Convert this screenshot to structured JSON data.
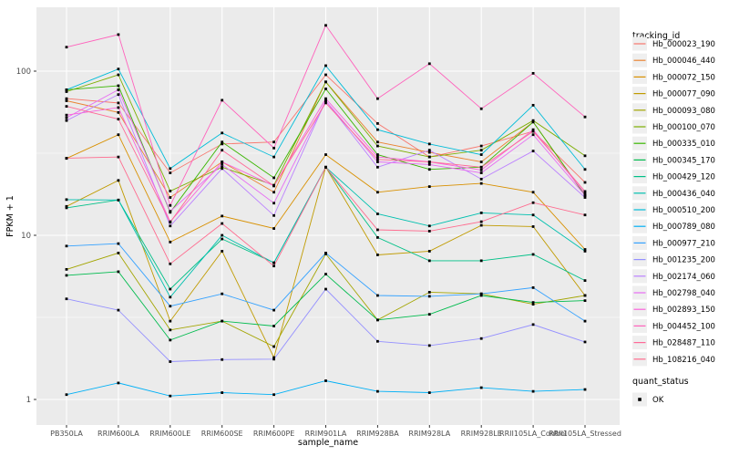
{
  "colors": {
    "page_bg": "#ffffff",
    "panel_bg": "#EBEBEB",
    "grid_major": "#FFFFFF",
    "grid_minor": "#F7F7F7",
    "axis_text": "#4D4D4D",
    "axis_title": "#000000",
    "tick_mark": "#333333",
    "marker": "#000000",
    "legend_key_bg": "#EFEFEF"
  },
  "chart_data": {
    "type": "line",
    "title": "",
    "xlabel": "sample_name",
    "ylabel": "FPKM + 1",
    "y_scale": "log10",
    "y_ticks": [
      1,
      10,
      100
    ],
    "y_minor_ticks": [
      3.162,
      31.62
    ],
    "ylim": [
      0.73,
      250
    ],
    "grid": true,
    "legend_position": "right",
    "legend_title": "tracking_id",
    "marker_legend": {
      "title": "quant_status",
      "items": [
        {
          "label": "OK",
          "marker": "black-square"
        }
      ]
    },
    "x_categories": [
      "PB350LA",
      "RRIM600LA",
      "RRIM600LE",
      "RRIM600SE",
      "RRIM600PE",
      "RRIM901LA",
      "RRIM928BA",
      "RRIM928LA",
      "RRIM928LE",
      "RRII105LA_Control",
      "RRII105LA_Stressed"
    ],
    "series": [
      {
        "name": "Hb_000023_190",
        "color": "#F8766D",
        "values": [
          68,
          64,
          24,
          36,
          37,
          95,
          48,
          30,
          35,
          43,
          21
        ]
      },
      {
        "name": "Hb_000046_440",
        "color": "#EA8331",
        "values": [
          66,
          56,
          17,
          28,
          18.3,
          86,
          37,
          32,
          28,
          49,
          17.5
        ]
      },
      {
        "name": "Hb_000072_150",
        "color": "#D89000",
        "values": [
          29.4,
          41,
          9.1,
          13.1,
          11,
          31,
          18.3,
          19.8,
          20.7,
          18.3,
          8.2
        ]
      },
      {
        "name": "Hb_000077_090",
        "color": "#C09B00",
        "values": [
          15,
          21.6,
          3.0,
          8.0,
          1.8,
          26,
          7.6,
          8.0,
          11.5,
          11.3,
          4.3
        ]
      },
      {
        "name": "Hb_000093_080",
        "color": "#A3A500",
        "values": [
          6.2,
          7.8,
          2.65,
          3.0,
          2.1,
          7.7,
          3.05,
          4.5,
          4.4,
          3.8,
          4.3
        ]
      },
      {
        "name": "Hb_000100_070",
        "color": "#7CAE00",
        "values": [
          75,
          95,
          18.6,
          26,
          20.2,
          86,
          35,
          30,
          33,
          50,
          30.5
        ]
      },
      {
        "name": "Hb_000335_010",
        "color": "#39B600",
        "values": [
          77,
          81.5,
          13.8,
          37,
          22.4,
          78,
          31,
          25.2,
          26,
          49,
          17.5
        ]
      },
      {
        "name": "Hb_000345_170",
        "color": "#00BB4E",
        "values": [
          5.7,
          6.0,
          2.3,
          3.0,
          2.8,
          5.8,
          3.05,
          3.3,
          4.3,
          3.9,
          4.0
        ]
      },
      {
        "name": "Hb_000429_120",
        "color": "#00C087",
        "values": [
          14.7,
          16.4,
          4.7,
          9.5,
          6.8,
          26,
          9.7,
          7.0,
          7.0,
          7.65,
          5.3
        ]
      },
      {
        "name": "Hb_000436_040",
        "color": "#00C0AF",
        "values": [
          16.5,
          16.4,
          4.2,
          10,
          6.8,
          26,
          13.5,
          11.4,
          13.7,
          13.3,
          8.0
        ]
      },
      {
        "name": "Hb_000510_200",
        "color": "#00BCD8",
        "values": [
          77,
          103,
          25.5,
          42,
          30,
          108,
          44,
          36,
          31,
          62,
          25.2
        ]
      },
      {
        "name": "Hb_000789_080",
        "color": "#00B0F6",
        "values": [
          1.07,
          1.26,
          1.05,
          1.1,
          1.07,
          1.3,
          1.12,
          1.1,
          1.18,
          1.12,
          1.15
        ]
      },
      {
        "name": "Hb_000977_210",
        "color": "#35A2FF",
        "values": [
          8.6,
          8.9,
          3.7,
          4.4,
          3.5,
          7.8,
          4.3,
          4.25,
          4.4,
          4.8,
          3.0
        ]
      },
      {
        "name": "Hb_001235_200",
        "color": "#9590FF",
        "values": [
          4.1,
          3.5,
          1.7,
          1.75,
          1.76,
          4.7,
          2.26,
          2.13,
          2.35,
          2.86,
          2.24
        ]
      },
      {
        "name": "Hb_002174_060",
        "color": "#BC81FF",
        "values": [
          50,
          72,
          11.4,
          25.5,
          13.2,
          66,
          26,
          33,
          22,
          32.6,
          17
        ]
      },
      {
        "name": "Hb_002798_040",
        "color": "#E76BF3",
        "values": [
          52,
          77,
          14,
          27,
          15.7,
          66,
          28,
          27,
          24,
          41,
          17.5
        ]
      },
      {
        "name": "Hb_002893_150",
        "color": "#FA62DB",
        "values": [
          54,
          60,
          12.1,
          28,
          20,
          68,
          30,
          28,
          25,
          44,
          18
        ]
      },
      {
        "name": "Hb_004452_100",
        "color": "#FF62BC",
        "values": [
          140,
          167,
          15.2,
          66.5,
          34,
          190,
          68,
          111,
          59,
          97,
          52.6
        ]
      },
      {
        "name": "Hb_028487_110",
        "color": "#FF6A98",
        "values": [
          61,
          51,
          12,
          33,
          20,
          64,
          29,
          28,
          26,
          43,
          18.5
        ]
      },
      {
        "name": "Hb_108216_040",
        "color": "#FF6B8F",
        "values": [
          29.5,
          30,
          6.7,
          11.8,
          6.5,
          26,
          10.8,
          10.6,
          12.1,
          15.8,
          13.3
        ]
      }
    ]
  }
}
